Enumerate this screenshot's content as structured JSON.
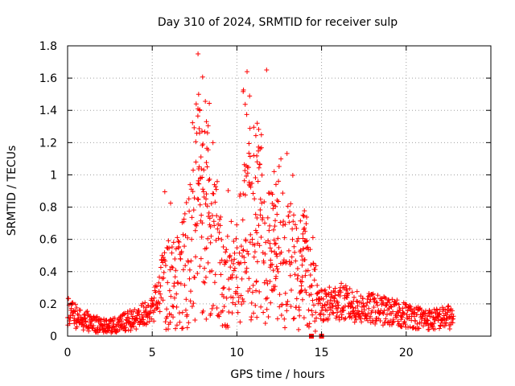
{
  "chart_data": {
    "type": "scatter",
    "title": "Day 310 of 2024, SRMTID for receiver sulp",
    "xlabel": "GPS time / hours",
    "ylabel": "SRMTID / TECUs",
    "xlim": [
      0,
      25
    ],
    "ylim": [
      0,
      1.8
    ],
    "x_ticks": [
      0,
      5,
      10,
      15,
      20
    ],
    "x_tick_labels": [
      "0",
      "5",
      "10",
      "15",
      "20"
    ],
    "y_ticks": [
      0,
      0.2,
      0.4,
      0.6,
      0.8,
      1.0,
      1.2,
      1.4,
      1.6,
      1.8
    ],
    "y_tick_labels": [
      "0",
      "0.2",
      "0.4",
      "0.6",
      "0.8",
      "1",
      "1.2",
      "1.4",
      "1.6",
      "1.8"
    ],
    "grid": true,
    "marker": "+",
    "color": "#ff0000",
    "series": [
      {
        "name": "SRMTID",
        "envelope_x": [
          0,
          0.5,
          1,
          1.5,
          2,
          2.5,
          3,
          3.5,
          4,
          4.5,
          5,
          5.5,
          6,
          6.5,
          7,
          7.5,
          8,
          8.5,
          9,
          9.5,
          10,
          10.5,
          11,
          11.5,
          12,
          12.5,
          13,
          13.5,
          14,
          14.5,
          15,
          15.5,
          16,
          16.5,
          17,
          17.5,
          18,
          18.5,
          19,
          19.5,
          20,
          20.5,
          21,
          21.5,
          22,
          22.5,
          22.8
        ],
        "envelope_median": [
          0.15,
          0.12,
          0.1,
          0.08,
          0.06,
          0.06,
          0.07,
          0.09,
          0.11,
          0.13,
          0.18,
          0.26,
          0.35,
          0.3,
          0.45,
          0.65,
          0.75,
          0.55,
          0.4,
          0.35,
          0.4,
          0.6,
          0.55,
          0.6,
          0.5,
          0.4,
          0.45,
          0.38,
          0.35,
          0.25,
          0.18,
          0.2,
          0.22,
          0.2,
          0.18,
          0.17,
          0.17,
          0.16,
          0.15,
          0.14,
          0.13,
          0.12,
          0.11,
          0.1,
          0.11,
          0.12,
          0.1
        ],
        "peaks": [
          {
            "x": 7.7,
            "y": 1.41
          },
          {
            "x": 8.2,
            "y": 1.33
          },
          {
            "x": 10.6,
            "y": 1.64
          },
          {
            "x": 11.2,
            "y": 1.32
          },
          {
            "x": 12.2,
            "y": 1.02
          },
          {
            "x": 13.9,
            "y": 0.75
          }
        ],
        "zero_points": [
          14.4,
          15.0
        ]
      }
    ]
  }
}
